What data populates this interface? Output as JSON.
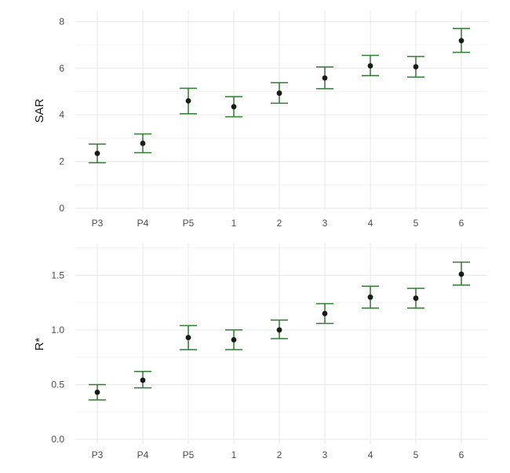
{
  "chart_data": [
    {
      "type": "scatter",
      "error_bars": true,
      "categories": [
        "P3",
        "P4",
        "P5",
        "1",
        "2",
        "3",
        "4",
        "5",
        "6"
      ],
      "series": [
        {
          "values": [
            2.35,
            2.78,
            4.6,
            4.35,
            4.93,
            5.58,
            6.1,
            6.06,
            7.18
          ],
          "lower": [
            1.95,
            2.38,
            4.05,
            3.92,
            4.5,
            5.12,
            5.68,
            5.62,
            6.68
          ],
          "upper": [
            2.75,
            3.18,
            5.14,
            4.78,
            5.38,
            6.05,
            6.55,
            6.5,
            7.7
          ]
        }
      ],
      "xlabel": "",
      "ylabel": "SAR",
      "ylim": [
        -0.1,
        8.45
      ],
      "yticks": [
        0,
        2,
        4,
        6,
        8
      ],
      "ytick_labels": [
        "0",
        "2",
        "4",
        "6",
        "8"
      ],
      "grid": true,
      "colors": {
        "point": "#1a1a1a",
        "errorbar": "#2e7d32",
        "grid": "#ebebeb"
      }
    },
    {
      "type": "scatter",
      "error_bars": true,
      "categories": [
        "P3",
        "P4",
        "P5",
        "1",
        "2",
        "3",
        "4",
        "5",
        "6"
      ],
      "series": [
        {
          "values": [
            0.43,
            0.54,
            0.93,
            0.91,
            1.0,
            1.15,
            1.3,
            1.29,
            1.51
          ],
          "lower": [
            0.36,
            0.47,
            0.82,
            0.82,
            0.92,
            1.06,
            1.2,
            1.2,
            1.41
          ],
          "upper": [
            0.5,
            0.62,
            1.04,
            1.0,
            1.09,
            1.24,
            1.4,
            1.38,
            1.62
          ]
        }
      ],
      "xlabel": "",
      "ylabel": "R*",
      "ylim": [
        -0.05,
        1.79
      ],
      "yticks": [
        0,
        0.5,
        1.0,
        1.5
      ],
      "ytick_labels": [
        "0.0",
        "0.5",
        "1.0",
        "1.5"
      ],
      "grid": true,
      "colors": {
        "point": "#1a1a1a",
        "errorbar": "#2e7d32",
        "grid": "#ebebeb"
      }
    }
  ]
}
